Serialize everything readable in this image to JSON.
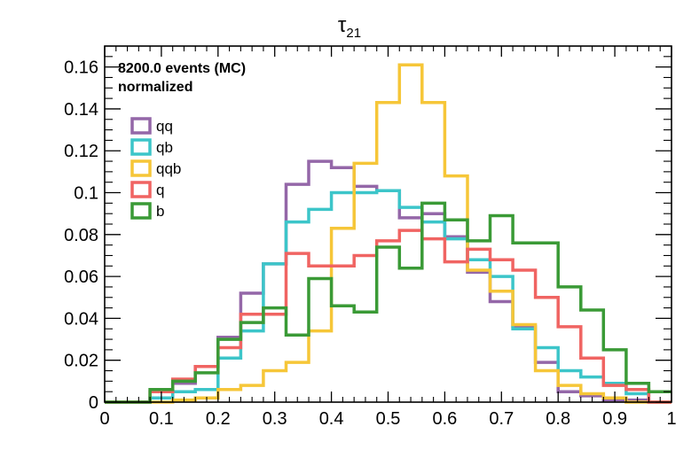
{
  "chart_data": {
    "type": "line",
    "title": "τ",
    "title_subscript": "21",
    "annotations": [
      "8200.0 events (MC)",
      "normalized"
    ],
    "xlim": [
      0,
      1
    ],
    "ylim": [
      0,
      0.17
    ],
    "x_ticks": [
      0,
      0.1,
      0.2,
      0.3,
      0.4,
      0.5,
      0.6,
      0.7,
      0.8,
      0.9,
      1
    ],
    "y_ticks": [
      0,
      0.02,
      0.04,
      0.06,
      0.08,
      0.1,
      0.12,
      0.14,
      0.16
    ],
    "x_tick_labels": [
      "0",
      "0.1",
      "0.2",
      "0.3",
      "0.4",
      "0.5",
      "0.6",
      "0.7",
      "0.8",
      "0.9",
      "1"
    ],
    "y_tick_labels": [
      "0",
      "0.02",
      "0.04",
      "0.06",
      "0.08",
      "0.1",
      "0.12",
      "0.14",
      "0.16"
    ],
    "bin_edges": [
      0,
      0.04,
      0.08,
      0.12,
      0.16,
      0.2,
      0.24,
      0.28,
      0.32,
      0.36,
      0.4,
      0.44,
      0.48,
      0.52,
      0.56,
      0.6,
      0.64,
      0.68,
      0.72,
      0.76,
      0.8,
      0.84,
      0.88,
      0.92,
      0.96,
      1
    ],
    "legend_position": "top-left",
    "grid": false,
    "series": [
      {
        "name": "qq",
        "color": "#9467a8",
        "values": [
          0,
          0,
          0.002,
          0.009,
          0.017,
          0.031,
          0.052,
          0.066,
          0.104,
          0.115,
          0.112,
          0.103,
          0.101,
          0.088,
          0.09,
          0.079,
          0.062,
          0.048,
          0.036,
          0.019,
          0.005,
          0.003,
          0.001,
          0.001,
          0
        ]
      },
      {
        "name": "qb",
        "color": "#3cc5c9",
        "values": [
          0,
          0,
          0.002,
          0.005,
          0.006,
          0.021,
          0.034,
          0.066,
          0.086,
          0.092,
          0.1,
          0.1,
          0.101,
          0.093,
          0.086,
          0.078,
          0.068,
          0.06,
          0.035,
          0.026,
          0.015,
          0.012,
          0.009,
          0.004,
          0
        ]
      },
      {
        "name": "qqb",
        "color": "#f6c638",
        "values": [
          0,
          0,
          0,
          0.001,
          0.002,
          0.006,
          0.008,
          0.015,
          0.019,
          0.034,
          0.083,
          0.114,
          0.143,
          0.161,
          0.143,
          0.108,
          0.063,
          0.053,
          0.037,
          0.015,
          0.008,
          0.004,
          0.002,
          0,
          0
        ]
      },
      {
        "name": "q",
        "color": "#f06462",
        "values": [
          0,
          0,
          0.005,
          0.011,
          0.017,
          0.026,
          0.042,
          0.042,
          0.071,
          0.065,
          0.065,
          0.07,
          0.077,
          0.082,
          0.078,
          0.067,
          0.073,
          0.068,
          0.063,
          0.05,
          0.036,
          0.021,
          0.008,
          0.006,
          0
        ]
      },
      {
        "name": "b",
        "color": "#3a9a36",
        "values": [
          0,
          0,
          0.006,
          0.01,
          0.014,
          0.03,
          0.038,
          0.045,
          0.032,
          0.059,
          0.046,
          0.043,
          0.074,
          0.064,
          0.095,
          0.087,
          0.077,
          0.089,
          0.076,
          0.076,
          0.055,
          0.044,
          0.025,
          0.009,
          0.005
        ]
      }
    ]
  }
}
